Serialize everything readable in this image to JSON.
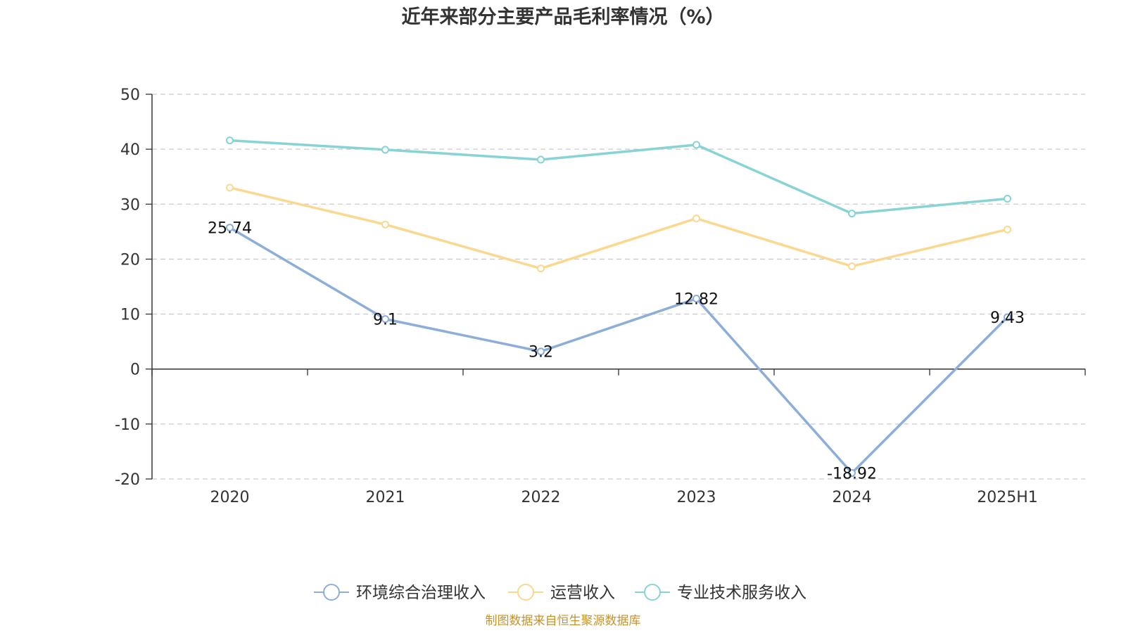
{
  "chart_data": {
    "type": "line",
    "title": "近年来部分主要产品毛利率情况（%）",
    "categories": [
      "2020",
      "2021",
      "2022",
      "2023",
      "2024",
      "2025H1"
    ],
    "ylim": [
      -20,
      50
    ],
    "yticks": [
      50,
      40,
      30,
      20,
      10,
      0,
      -10,
      -20
    ],
    "grid": true,
    "legend_position": "bottom",
    "series": [
      {
        "name": "环境综合治理收入",
        "color": "#8caed8",
        "values": [
          25.74,
          9.1,
          3.2,
          12.82,
          -18.92,
          9.43
        ],
        "labels": [
          "25.74",
          "9.1",
          "3.2",
          "12.82",
          "-18.92",
          "9.43"
        ]
      },
      {
        "name": "运营收入",
        "color": "#fad88f",
        "values": [
          33.0,
          26.3,
          18.3,
          27.4,
          18.7,
          25.4
        ]
      },
      {
        "name": "专业技术服务收入",
        "color": "#88d3d3",
        "values": [
          41.6,
          39.9,
          38.1,
          40.8,
          28.3,
          31.0
        ]
      }
    ]
  },
  "source_note": "制图数据来自恒生聚源数据库"
}
